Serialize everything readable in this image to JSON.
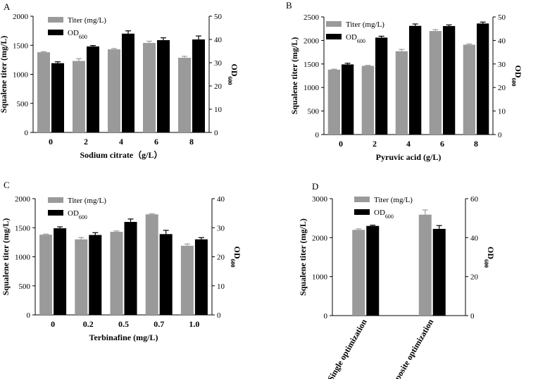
{
  "colors": {
    "titer": "#9a9a9a",
    "od": "#000000",
    "axis": "#000000",
    "background": "#ffffff"
  },
  "legend": {
    "titer_text": "Titer (mg/L)",
    "od_text": "OD",
    "od_sub": "600"
  },
  "chart_data": [
    {
      "type": "bar",
      "panel": "A",
      "xlabel": "Sodium citrate（g/L）",
      "ylabel": "Squalene titer (mg/L)",
      "y2label": "OD",
      "y2label_sub": "600",
      "categories": [
        "0",
        "2",
        "4",
        "6",
        "8"
      ],
      "ylim": [
        0,
        2000
      ],
      "yticks": [
        0,
        500,
        1000,
        1500,
        2000
      ],
      "y2lim": [
        0,
        50
      ],
      "y2ticks": [
        0,
        10,
        20,
        30,
        40,
        50
      ],
      "series": [
        {
          "axis": "left",
          "values": [
            1380,
            1230,
            1430,
            1540,
            1285
          ],
          "errors": [
            10,
            40,
            15,
            30,
            25
          ]
        },
        {
          "axis": "right",
          "values": [
            29.8,
            37.0,
            42.5,
            39.7,
            40.0
          ],
          "errors": [
            0.6,
            0.4,
            1.2,
            1.0,
            1.5
          ]
        }
      ],
      "legend_pos": "top-left"
    },
    {
      "type": "bar",
      "panel": "B",
      "xlabel": "Pyruvic acid (g/L)",
      "ylabel": "Squalene titer (mg/L)",
      "y2label": "OD",
      "y2label_sub": "600",
      "categories": [
        "0",
        "2",
        "4",
        "6",
        "8"
      ],
      "ylim": [
        0,
        2500
      ],
      "yticks": [
        0,
        500,
        1000,
        1500,
        2000,
        2500
      ],
      "y2lim": [
        0,
        50
      ],
      "y2ticks": [
        0,
        10,
        20,
        30,
        40,
        50
      ],
      "series": [
        {
          "axis": "left",
          "values": [
            1380,
            1460,
            1770,
            2200,
            1910
          ],
          "errors": [
            10,
            10,
            40,
            30,
            15
          ]
        },
        {
          "axis": "right",
          "values": [
            29.8,
            41.2,
            46.2,
            46.1,
            47.2
          ],
          "errors": [
            0.5,
            0.6,
            0.8,
            0.5,
            0.6
          ]
        }
      ],
      "legend_pos": "top-left"
    },
    {
      "type": "bar",
      "panel": "C",
      "xlabel": "Terbinafine (mg/L)",
      "ylabel": "Squalene titer (mg/L)",
      "y2label": "OD",
      "y2label_sub": "600",
      "categories": [
        "0",
        "0.2",
        "0.5",
        "0.7",
        "1.0"
      ],
      "ylim": [
        0,
        2000
      ],
      "yticks": [
        0,
        500,
        1000,
        1500,
        2000
      ],
      "y2lim": [
        0,
        40
      ],
      "y2ticks": [
        0,
        10,
        20,
        30,
        40
      ],
      "series": [
        {
          "axis": "left",
          "values": [
            1380,
            1300,
            1430,
            1730,
            1190
          ],
          "errors": [
            10,
            30,
            15,
            10,
            30
          ]
        },
        {
          "axis": "right",
          "values": [
            29.8,
            27.5,
            32.0,
            27.8,
            26.0
          ],
          "errors": [
            0.5,
            0.8,
            1.0,
            1.3,
            0.6
          ]
        }
      ],
      "legend_pos": "top-left"
    },
    {
      "type": "bar",
      "panel": "D",
      "xlabel": "",
      "ylabel": "Squalene titer (mg/L)",
      "y2label": "OD",
      "y2label_sub": "600",
      "categories": [
        "Single optimization",
        "Composite optimization"
      ],
      "ylim": [
        0,
        3000
      ],
      "yticks": [
        0,
        1000,
        2000,
        3000
      ],
      "y2lim": [
        0,
        60
      ],
      "y2ticks": [
        0,
        20,
        40,
        60
      ],
      "series": [
        {
          "axis": "left",
          "values": [
            2200,
            2590
          ],
          "errors": [
            25,
            120
          ]
        },
        {
          "axis": "right",
          "values": [
            46.0,
            44.5
          ],
          "errors": [
            0.4,
            1.7
          ]
        }
      ],
      "legend_pos": "top-left"
    }
  ]
}
